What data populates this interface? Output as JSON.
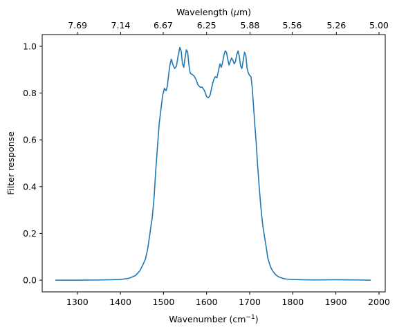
{
  "chart_data": {
    "type": "line",
    "title": "",
    "xlabel_prefix": "Wavenumber (cm",
    "xlabel_sup": "−1",
    "xlabel_suffix": ")",
    "ylabel": "Filter response",
    "top_xlabel_prefix": "Wavelength (",
    "top_xlabel_mu": "μ",
    "top_xlabel_suffix": "m)",
    "xlim": [
      1218.5,
      2014.5
    ],
    "ylim": [
      -0.05,
      1.05
    ],
    "x_ticks": [
      1300,
      1400,
      1500,
      1600,
      1700,
      1800,
      1900,
      2000
    ],
    "y_ticks": [
      0.0,
      0.2,
      0.4,
      0.6,
      0.8,
      1.0
    ],
    "y_tick_labels": [
      "0.0",
      "0.2",
      "0.4",
      "0.6",
      "0.8",
      "1.0"
    ],
    "top_ticks": [
      {
        "wavenumber": 1300.5,
        "label": "7.69"
      },
      {
        "wavenumber": 1400.6,
        "label": "7.14"
      },
      {
        "wavenumber": 1499.3,
        "label": "6.67"
      },
      {
        "wavenumber": 1600.0,
        "label": "6.25"
      },
      {
        "wavenumber": 1700.7,
        "label": "5.88"
      },
      {
        "wavenumber": 1798.6,
        "label": "5.56"
      },
      {
        "wavenumber": 1901.1,
        "label": "5.26"
      },
      {
        "wavenumber": 2000.0,
        "label": "5.00"
      }
    ],
    "line_color": "#1f77b4",
    "series": [
      {
        "x": [
          1250,
          1300,
          1350,
          1380,
          1400,
          1420,
          1435,
          1445,
          1452,
          1458,
          1463,
          1467,
          1470,
          1474,
          1478,
          1482,
          1486,
          1490,
          1494,
          1498,
          1502,
          1506,
          1509,
          1512,
          1515,
          1518,
          1522,
          1526,
          1530,
          1534,
          1538,
          1541,
          1544,
          1547,
          1550,
          1553,
          1556,
          1559,
          1562,
          1566,
          1570,
          1575,
          1580,
          1585,
          1590,
          1595,
          1600,
          1604,
          1608,
          1612,
          1616,
          1620,
          1624,
          1628,
          1631,
          1634,
          1637,
          1640,
          1643,
          1646,
          1649,
          1652,
          1655,
          1658,
          1661,
          1664,
          1667,
          1670,
          1673,
          1676,
          1679,
          1682,
          1685,
          1688,
          1691,
          1694,
          1697,
          1700,
          1703,
          1706,
          1709,
          1712,
          1715,
          1718,
          1722,
          1726,
          1730,
          1734,
          1738,
          1742,
          1746,
          1750,
          1755,
          1760,
          1765,
          1770,
          1775,
          1780,
          1790,
          1800,
          1820,
          1850,
          1900,
          1950,
          1980
        ],
        "y": [
          0.0,
          0.0,
          0.001,
          0.002,
          0.003,
          0.008,
          0.02,
          0.04,
          0.065,
          0.09,
          0.13,
          0.18,
          0.22,
          0.27,
          0.35,
          0.47,
          0.57,
          0.67,
          0.73,
          0.79,
          0.82,
          0.81,
          0.83,
          0.88,
          0.92,
          0.945,
          0.92,
          0.905,
          0.915,
          0.96,
          0.995,
          0.98,
          0.925,
          0.91,
          0.95,
          0.985,
          0.975,
          0.92,
          0.885,
          0.88,
          0.875,
          0.86,
          0.835,
          0.825,
          0.825,
          0.81,
          0.785,
          0.78,
          0.79,
          0.825,
          0.855,
          0.87,
          0.865,
          0.9,
          0.925,
          0.91,
          0.93,
          0.96,
          0.98,
          0.975,
          0.945,
          0.92,
          0.935,
          0.95,
          0.94,
          0.925,
          0.935,
          0.965,
          0.98,
          0.955,
          0.915,
          0.905,
          0.94,
          0.975,
          0.96,
          0.905,
          0.885,
          0.875,
          0.87,
          0.82,
          0.74,
          0.66,
          0.59,
          0.5,
          0.4,
          0.31,
          0.24,
          0.19,
          0.145,
          0.095,
          0.07,
          0.05,
          0.035,
          0.024,
          0.017,
          0.012,
          0.009,
          0.006,
          0.004,
          0.003,
          0.002,
          0.001,
          0.002,
          0.001,
          0.0
        ]
      }
    ]
  }
}
